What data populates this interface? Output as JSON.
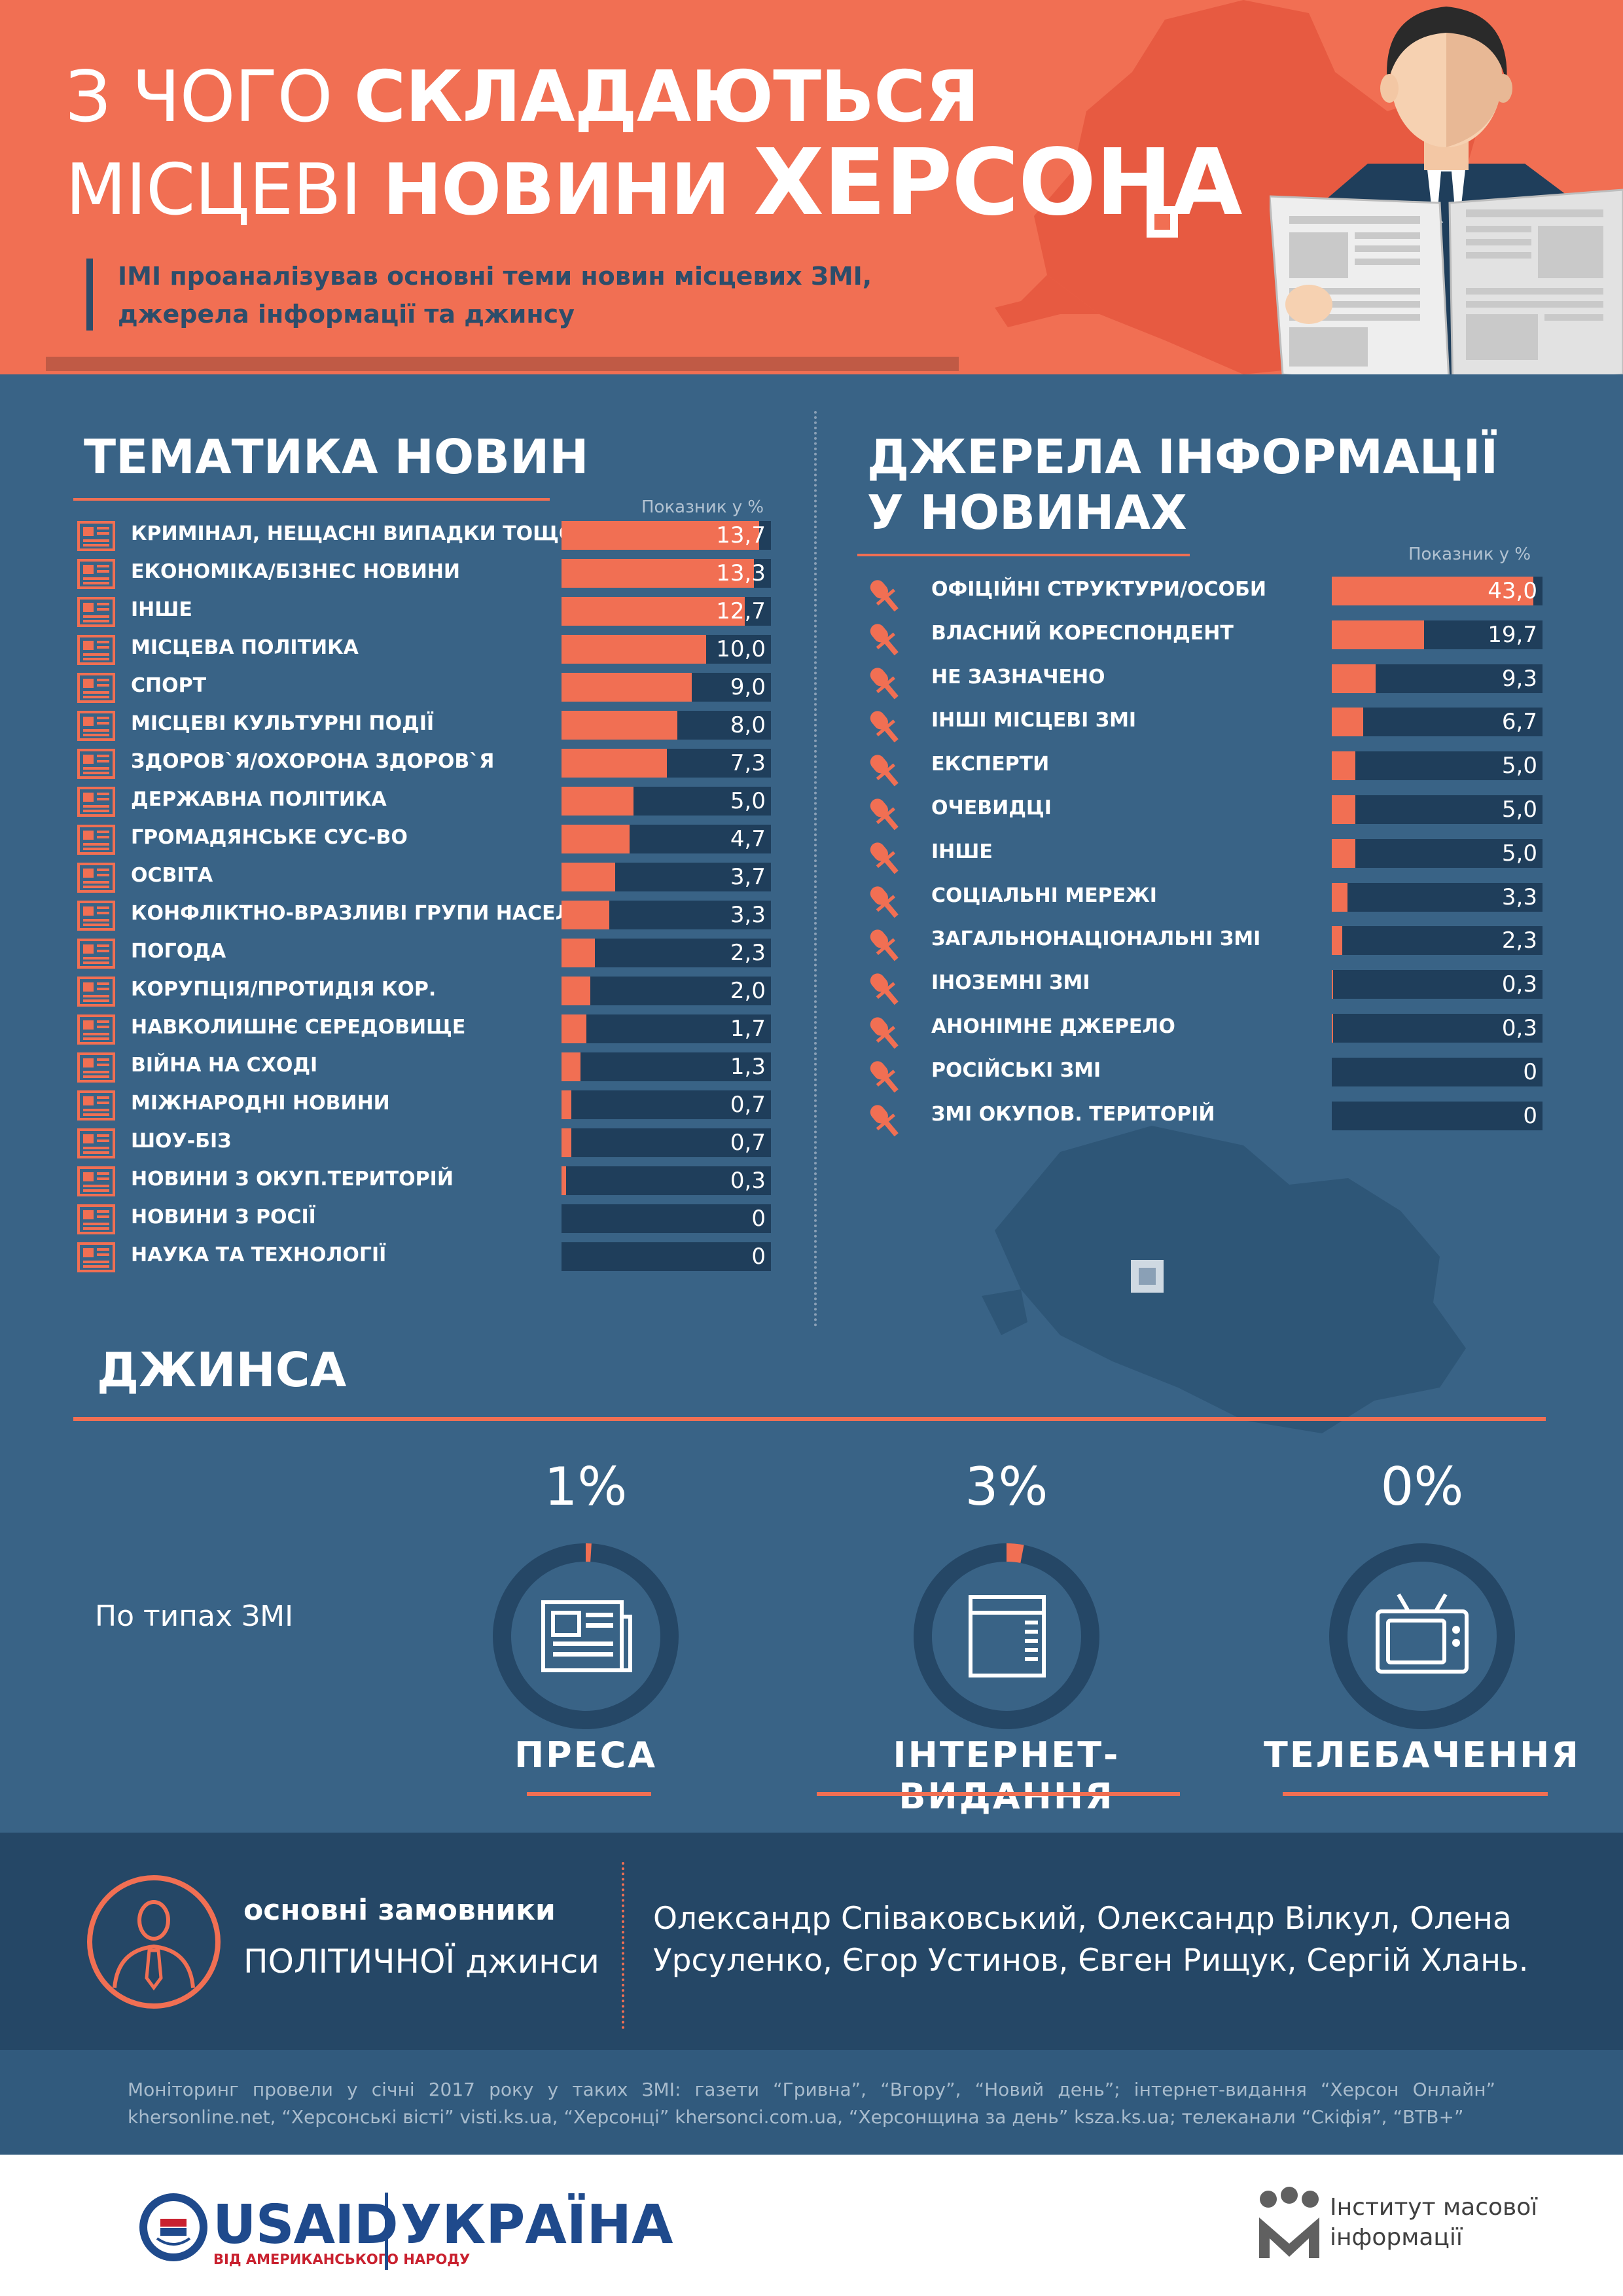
{
  "header": {
    "title_1_thin": "З ЧОГО ",
    "title_1_bold": "СКЛАДАЮТЬСЯ",
    "title_2_thin": "МІСЦЕВІ ",
    "title_2_bold": "НОВИНИ ",
    "title_2_big": "ХЕРСОНА",
    "intro": "ІМІ проаналізував основні теми новин місцевих ЗМІ, джерела інформації та джинсу"
  },
  "topics": {
    "title": "ТЕМАТИКА НОВИН",
    "unit_note": "Показник у %",
    "items": [
      {
        "label": "КРИМІНАЛ, НЕЩАСНІ ВИПАДКИ ТОЩО",
        "value": 13.7,
        "display": "13,7"
      },
      {
        "label": "ЕКОНОМІКА/БІЗНЕС НОВИНИ",
        "value": 13.3,
        "display": "13,3"
      },
      {
        "label": "ІНШЕ",
        "value": 12.7,
        "display": "12,7"
      },
      {
        "label": "МІСЦЕВА ПОЛІТИКА",
        "value": 10.0,
        "display": "10,0"
      },
      {
        "label": "СПОРТ",
        "value": 9.0,
        "display": "9,0"
      },
      {
        "label": "МІСЦЕВІ КУЛЬТУРНІ ПОДІЇ",
        "value": 8.0,
        "display": "8,0"
      },
      {
        "label": "ЗДОРОВ`Я/ОХОРОНА ЗДОРОВ`Я",
        "value": 7.3,
        "display": "7,3"
      },
      {
        "label": "ДЕРЖАВНА ПОЛІТИКА",
        "value": 5.0,
        "display": "5,0"
      },
      {
        "label": "ГРОМАДЯНСЬКЕ СУС-ВО",
        "value": 4.7,
        "display": "4,7"
      },
      {
        "label": "ОСВІТА",
        "value": 3.7,
        "display": "3,7"
      },
      {
        "label": "КОНФЛІКТНО-ВРАЗЛИВІ ГРУПИ НАСЕЛЕННЯ",
        "value": 3.3,
        "display": "3,3"
      },
      {
        "label": "ПОГОДА",
        "value": 2.3,
        "display": "2,3"
      },
      {
        "label": "КОРУПЦІЯ/ПРОТИДІЯ КОР.",
        "value": 2.0,
        "display": "2,0"
      },
      {
        "label": "НАВКОЛИШНЄ СЕРЕДОВИЩЕ",
        "value": 1.7,
        "display": "1,7"
      },
      {
        "label": "ВІЙНА НА СХОДІ",
        "value": 1.3,
        "display": "1,3"
      },
      {
        "label": "МІЖНАРОДНІ НОВИНИ",
        "value": 0.7,
        "display": "0,7"
      },
      {
        "label": "ШОУ-БІЗ",
        "value": 0.7,
        "display": "0,7"
      },
      {
        "label": "НОВИНИ З ОКУП.ТЕРИТОРІЙ",
        "value": 0.3,
        "display": "0,3"
      },
      {
        "label": "НОВИНИ З РОСІЇ",
        "value": 0,
        "display": "0"
      },
      {
        "label": "НАУКА ТА ТЕХНОЛОГІЇ",
        "value": 0,
        "display": "0"
      }
    ]
  },
  "sources": {
    "title_1": "ДЖЕРЕЛА ІНФОРМАЦІЇ",
    "title_2": "У НОВИНАХ",
    "unit_note": "Показник у %",
    "items": [
      {
        "label": "ОФІЦІЙНІ СТРУКТУРИ/ОСОБИ",
        "value": 43.0,
        "display": "43,0"
      },
      {
        "label": "ВЛАСНИЙ КОРЕСПОНДЕНТ",
        "value": 19.7,
        "display": "19,7"
      },
      {
        "label": "НЕ ЗАЗНАЧЕНО",
        "value": 9.3,
        "display": "9,3"
      },
      {
        "label": "ІНШІ МІСЦЕВІ ЗМІ",
        "value": 6.7,
        "display": "6,7"
      },
      {
        "label": "ЕКСПЕРТИ",
        "value": 5.0,
        "display": "5,0"
      },
      {
        "label": "ОЧЕВИДЦІ",
        "value": 5.0,
        "display": "5,0"
      },
      {
        "label": "ІНШЕ",
        "value": 5.0,
        "display": "5,0"
      },
      {
        "label": "СОЦІАЛЬНІ МЕРЕЖІ",
        "value": 3.3,
        "display": "3,3"
      },
      {
        "label": "ЗАГАЛЬНОНАЦІОНАЛЬНІ ЗМІ",
        "value": 2.3,
        "display": "2,3"
      },
      {
        "label": "ІНОЗЕМНІ ЗМІ",
        "value": 0.3,
        "display": "0,3"
      },
      {
        "label": "АНОНІМНЕ ДЖЕРЕЛО",
        "value": 0.3,
        "display": "0,3"
      },
      {
        "label": "РОСІЙСЬКІ ЗМІ",
        "value": 0,
        "display": "0"
      },
      {
        "label": "ЗМІ ОКУПОВ. ТЕРИТОРІЙ",
        "value": 0,
        "display": "0"
      }
    ]
  },
  "jeansa": {
    "title": "ДЖИНСА",
    "by_type": "По типах ЗМІ",
    "types": [
      {
        "label": "ПРЕСА",
        "pct_text": "1%",
        "value": 1,
        "icon": "newspaper-icon"
      },
      {
        "label": "ІНТЕРНЕТ-ВИДАННЯ",
        "pct_text": "3%",
        "value": 3,
        "icon": "browser-window-icon"
      },
      {
        "label": "ТЕЛЕБАЧЕННЯ",
        "pct_text": "0%",
        "value": 0,
        "icon": "tv-icon"
      }
    ]
  },
  "political": {
    "title_1": "основні замовники",
    "title_2": "ПОЛІТИЧНОЇ джинси",
    "names": "Олександр Співаковський, Олександр Вілкул, Олена Урсуленко, Єгор Устинов, Євген Рищук, Сергій Хлань."
  },
  "footer": {
    "note": "Моніторинг провели у січні 2017 року у таких ЗМІ: газети “Гривна”, “Вгору”, “Новий день”; інтернет-видання “Херсон Онлайн” khersonline.net, “Херсонські вісті” visti.ks.ua, “Херсонці” khersonci.com.ua, “Херсонщина за день” ksza.ks.ua; телеканали “Скіфія”, “ВТВ+”",
    "usaid": "USAID",
    "usaid_sub": "ВІД АМЕРИКАНСЬКОГО НАРОДУ",
    "ukraine": "УКРАЇНА",
    "imi_1": "Інститут масової",
    "imi_2": "інформації"
  },
  "colors": {
    "accent": "#f16f53",
    "background": "#396386",
    "bar_track": "#1f3e5b",
    "dark_band": "#254766"
  },
  "chart_data": [
    {
      "type": "bar",
      "title": "ТЕМАТИКА НОВИН",
      "ylabel": "Показник у %",
      "categories": [
        "КРИМІНАЛ, НЕЩАСНІ ВИПАДКИ ТОЩО",
        "ЕКОНОМІКА/БІЗНЕС НОВИНИ",
        "ІНШЕ",
        "МІСЦЕВА ПОЛІТИКА",
        "СПОРТ",
        "МІСЦЕВІ КУЛЬТУРНІ ПОДІЇ",
        "ЗДОРОВ`Я/ОХОРОНА ЗДОРОВ`Я",
        "ДЕРЖАВНА ПОЛІТИКА",
        "ГРОМАДЯНСЬКЕ СУС-ВО",
        "ОСВІТА",
        "КОНФЛІКТНО-ВРАЗЛИВІ ГРУПИ НАСЕЛЕННЯ",
        "ПОГОДА",
        "КОРУПЦІЯ/ПРОТИДІЯ КОР.",
        "НАВКОЛИШНЄ СЕРЕДОВИЩЕ",
        "ВІЙНА НА СХОДІ",
        "МІЖНАРОДНІ НОВИНИ",
        "ШОУ-БІЗ",
        "НОВИНИ З ОКУП.ТЕРИТОРІЙ",
        "НОВИНИ З РОСІЇ",
        "НАУКА ТА ТЕХНОЛОГІЇ"
      ],
      "values": [
        13.7,
        13.3,
        12.7,
        10.0,
        9.0,
        8.0,
        7.3,
        5.0,
        4.7,
        3.7,
        3.3,
        2.3,
        2.0,
        1.7,
        1.3,
        0.7,
        0.7,
        0.3,
        0,
        0
      ],
      "ylim": [
        0,
        14
      ]
    },
    {
      "type": "bar",
      "title": "ДЖЕРЕЛА ІНФОРМАЦІЇ У НОВИНАХ",
      "ylabel": "Показник у %",
      "categories": [
        "ОФІЦІЙНІ СТРУКТУРИ/ОСОБИ",
        "ВЛАСНИЙ КОРЕСПОНДЕНТ",
        "НЕ ЗАЗНАЧЕНО",
        "ІНШІ МІСЦЕВІ ЗМІ",
        "ЕКСПЕРТИ",
        "ОЧЕВИДЦІ",
        "ІНШЕ",
        "СОЦІАЛЬНІ МЕРЕЖІ",
        "ЗАГАЛЬНОНАЦІОНАЛЬНІ ЗМІ",
        "ІНОЗЕМНІ ЗМІ",
        "АНОНІМНЕ ДЖЕРЕЛО",
        "РОСІЙСЬКІ ЗМІ",
        "ЗМІ ОКУПОВ. ТЕРИТОРІЙ"
      ],
      "values": [
        43.0,
        19.7,
        9.3,
        6.7,
        5.0,
        5.0,
        5.0,
        3.3,
        2.3,
        0.3,
        0.3,
        0,
        0
      ],
      "ylim": [
        0,
        50
      ]
    },
    {
      "type": "pie",
      "title": "ДЖИНСА",
      "categories": [
        "ПРЕСА",
        "ІНТЕРНЕТ-ВИДАННЯ",
        "ТЕЛЕБАЧЕННЯ"
      ],
      "values": [
        1,
        3,
        0
      ]
    }
  ]
}
